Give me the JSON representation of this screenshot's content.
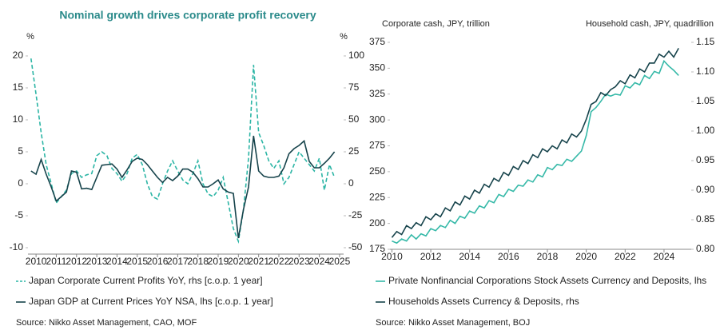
{
  "chart_data": [
    {
      "type": "line",
      "title": "Nominal growth drives corporate profit recovery",
      "y_label": "%",
      "y2_label": "%",
      "x": [
        2009.75,
        2010,
        2010.25,
        2010.5,
        2010.75,
        2011,
        2011.25,
        2011.5,
        2011.75,
        2012,
        2012.25,
        2012.5,
        2012.75,
        2013,
        2013.25,
        2013.5,
        2013.75,
        2014,
        2014.25,
        2014.5,
        2014.75,
        2015,
        2015.25,
        2015.5,
        2015.75,
        2016,
        2016.25,
        2016.5,
        2016.75,
        2017,
        2017.25,
        2017.5,
        2017.75,
        2018,
        2018.25,
        2018.5,
        2018.75,
        2019,
        2019.25,
        2019.5,
        2019.75,
        2020,
        2020.25,
        2020.5,
        2020.75,
        2021,
        2021.25,
        2021.5,
        2021.75,
        2022,
        2022.25,
        2022.5,
        2022.75,
        2023,
        2023.25,
        2023.5,
        2023.75,
        2024,
        2024.25,
        2024.5,
        2024.75
      ],
      "series": [
        {
          "name": "Japan Corporate Current Profits YoY, rhs [c.o.p. 1 year]",
          "color": "#2cb5a5",
          "line_style": "dashed",
          "axis": "y2",
          "values": [
            98,
            70,
            40,
            15,
            0,
            -15,
            -10,
            -5,
            8,
            10,
            5,
            7,
            8,
            22,
            25,
            22,
            12,
            8,
            2,
            8,
            20,
            23,
            15,
            0,
            -10,
            -12,
            0,
            10,
            18,
            10,
            3,
            0,
            8,
            18,
            0,
            -8,
            -10,
            -5,
            5,
            -15,
            -35,
            -45,
            -20,
            20,
            93,
            40,
            30,
            18,
            12,
            18,
            0,
            5,
            15,
            25,
            20,
            15,
            10,
            20,
            -5,
            15,
            5
          ]
        },
        {
          "name": "Japan GDP at Current Prices YoY NSA, lhs [c.o.p. 1 year]",
          "color": "#16434b",
          "line_style": "solid",
          "values": [
            2,
            1.5,
            3.8,
            1.5,
            -0.5,
            -2.7,
            -2,
            -1.3,
            2,
            1.8,
            -0.8,
            -0.7,
            -0.9,
            1,
            2.9,
            3,
            3.1,
            2.3,
            1,
            2.2,
            3.5,
            4,
            3.8,
            3,
            2,
            1,
            0.2,
            1,
            0.5,
            1.2,
            2.3,
            2.3,
            1.8,
            0.8,
            -0.5,
            -0.5,
            0,
            0.6,
            -0.8,
            -1.3,
            -1.5,
            -8.5,
            -4,
            -0.5,
            7.5,
            2,
            1.2,
            1,
            1,
            1.2,
            2.5,
            4.7,
            5.5,
            6,
            6.7,
            3.5,
            2.5,
            2.5,
            3.2,
            4,
            5
          ]
        }
      ],
      "xlim": [
        2009.6,
        2025.2
      ],
      "xticks": [
        2010,
        2011,
        2012,
        2013,
        2014,
        2015,
        2016,
        2017,
        2018,
        2019,
        2020,
        2021,
        2022,
        2023,
        2024,
        2025
      ],
      "ylim": [
        -11,
        21
      ],
      "yticks": [
        -10,
        -5,
        0,
        5,
        10,
        15,
        20
      ],
      "y2lim": [
        -55,
        105
      ],
      "y2ticks": [
        -50,
        -25,
        0,
        25,
        50,
        75,
        100
      ],
      "source": "Source: Nikko Asset Management, CAO, MOF"
    },
    {
      "type": "line",
      "y_label": "Corporate cash, JPY, trillion",
      "y2_label": "Household cash, JPY, quadrillion",
      "x": [
        2010,
        2010.25,
        2010.5,
        2010.75,
        2011,
        2011.25,
        2011.5,
        2011.75,
        2012,
        2012.25,
        2012.5,
        2012.75,
        2013,
        2013.25,
        2013.5,
        2013.75,
        2014,
        2014.25,
        2014.5,
        2014.75,
        2015,
        2015.25,
        2015.5,
        2015.75,
        2016,
        2016.25,
        2016.5,
        2016.75,
        2017,
        2017.25,
        2017.5,
        2017.75,
        2018,
        2018.25,
        2018.5,
        2018.75,
        2019,
        2019.25,
        2019.5,
        2019.75,
        2020,
        2020.25,
        2020.5,
        2020.75,
        2021,
        2021.25,
        2021.5,
        2021.75,
        2022,
        2022.25,
        2022.5,
        2022.75,
        2023,
        2023.25,
        2023.5,
        2023.75,
        2024,
        2024.25,
        2024.5,
        2024.75
      ],
      "series": [
        {
          "name": "Private Nonfinancial Corporations Stock Assets Currency and Deposits, lhs",
          "color": "#36b9a8",
          "line_style": "solid",
          "values": [
            183,
            181,
            185,
            183,
            189,
            185,
            190,
            188,
            195,
            193,
            198,
            196,
            203,
            200,
            207,
            205,
            212,
            210,
            217,
            215,
            222,
            220,
            228,
            226,
            233,
            231,
            237,
            236,
            242,
            240,
            247,
            245,
            254,
            252,
            257,
            256,
            262,
            260,
            265,
            270,
            285,
            308,
            312,
            318,
            325,
            323,
            325,
            324,
            333,
            331,
            336,
            334,
            343,
            340,
            347,
            345,
            357,
            352,
            348,
            343
          ]
        },
        {
          "name": "Households Assets Currency & Deposits, rhs",
          "color": "#16434b",
          "line_style": "solid",
          "axis": "y2",
          "values": [
            0.82,
            0.83,
            0.825,
            0.84,
            0.835,
            0.845,
            0.84,
            0.855,
            0.85,
            0.86,
            0.855,
            0.87,
            0.865,
            0.88,
            0.875,
            0.89,
            0.885,
            0.9,
            0.895,
            0.91,
            0.905,
            0.92,
            0.915,
            0.93,
            0.925,
            0.94,
            0.935,
            0.95,
            0.945,
            0.96,
            0.955,
            0.97,
            0.965,
            0.975,
            0.97,
            0.985,
            0.98,
            0.995,
            0.99,
            1.0,
            1.02,
            1.045,
            1.05,
            1.065,
            1.06,
            1.07,
            1.075,
            1.085,
            1.08,
            1.095,
            1.09,
            1.105,
            1.1,
            1.115,
            1.115,
            1.13,
            1.125,
            1.135,
            1.125,
            1.14
          ]
        }
      ],
      "xlim": [
        2009.9,
        2025.4
      ],
      "xticks": [
        2010,
        2012,
        2014,
        2016,
        2018,
        2020,
        2022,
        2024
      ],
      "ylim": [
        175,
        375
      ],
      "yticks": [
        175,
        200,
        225,
        250,
        275,
        300,
        325,
        350,
        375
      ],
      "y2lim": [
        0.8,
        1.15
      ],
      "y2ticks": [
        {
          "value": 0.8,
          "label": "0.80"
        },
        0.85,
        {
          "value": 0.9,
          "label": "0.90"
        },
        0.95,
        {
          "value": 1.0,
          "label": "1.00"
        },
        1.05,
        {
          "value": 1.1,
          "label": "1.10"
        },
        1.15
      ],
      "source": "Source: Nikko Asset Management, BOJ"
    }
  ]
}
